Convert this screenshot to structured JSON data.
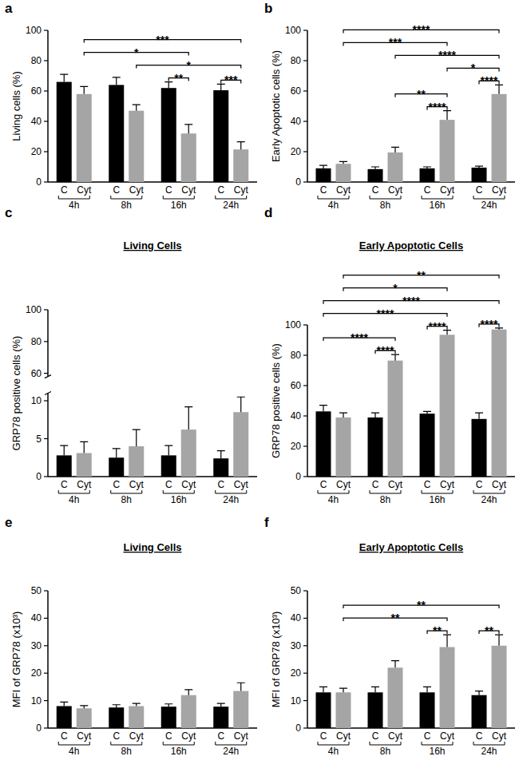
{
  "chart_data": [
    {
      "type": "bar",
      "panel": "a",
      "y_label": "Living cells (%)",
      "categories": [
        "4h",
        "8h",
        "16h",
        "24h"
      ],
      "series": [
        {
          "name": "C",
          "color": "#000000",
          "values": [
            66,
            64,
            62,
            60.5
          ],
          "errors": [
            5,
            5,
            4,
            4
          ]
        },
        {
          "name": "Cyt",
          "color": "#a5a5a5",
          "values": [
            58,
            47,
            32,
            21.5
          ],
          "errors": [
            5,
            4,
            6,
            5
          ]
        }
      ],
      "ylim": [
        0,
        100
      ],
      "yticks": [
        0,
        20,
        40,
        60,
        80,
        100
      ],
      "significance": [
        {
          "bars": [
            1,
            7
          ],
          "label": "***"
        },
        {
          "bars": [
            1,
            5
          ],
          "label": "*"
        },
        {
          "bars": [
            3,
            7
          ],
          "label": "*"
        },
        {
          "bars": [
            4,
            5
          ],
          "label": "**"
        },
        {
          "bars": [
            6,
            7
          ],
          "label": "***"
        }
      ]
    },
    {
      "type": "bar",
      "panel": "b",
      "y_label": "Early Apoptotic cells (%)",
      "categories": [
        "4h",
        "8h",
        "16h",
        "24h"
      ],
      "series": [
        {
          "name": "C",
          "color": "#000000",
          "values": [
            9,
            8.5,
            9,
            9.5
          ],
          "errors": [
            2,
            1.5,
            1,
            1
          ]
        },
        {
          "name": "Cyt",
          "color": "#a5a5a5",
          "values": [
            12,
            19.5,
            41,
            58
          ],
          "errors": [
            1.5,
            3.5,
            6,
            6
          ]
        }
      ],
      "ylim": [
        0,
        100
      ],
      "yticks": [
        0,
        20,
        40,
        60,
        80,
        100
      ],
      "significance": [
        {
          "bars": [
            1,
            7
          ],
          "label": "****"
        },
        {
          "bars": [
            1,
            5
          ],
          "label": "***"
        },
        {
          "bars": [
            3,
            7
          ],
          "label": "****"
        },
        {
          "bars": [
            3,
            5
          ],
          "label": "**"
        },
        {
          "bars": [
            5,
            7
          ],
          "label": "*"
        },
        {
          "bars": [
            4,
            5
          ],
          "label": "****"
        },
        {
          "bars": [
            6,
            7
          ],
          "label": "****"
        }
      ]
    },
    {
      "type": "bar",
      "panel": "c",
      "title": "Living Cells",
      "y_label": "GRP78 positive cells (%)",
      "categories": [
        "4h",
        "8h",
        "16h",
        "24h"
      ],
      "series": [
        {
          "name": "C",
          "color": "#000000",
          "values": [
            2.8,
            2.5,
            2.8,
            2.4
          ],
          "errors": [
            1.3,
            1.2,
            1.3,
            1
          ]
        },
        {
          "name": "Cyt",
          "color": "#a5a5a5",
          "values": [
            3.1,
            4,
            6.2,
            8.5
          ],
          "errors": [
            1.5,
            2.2,
            3,
            2
          ]
        }
      ],
      "ylim": [
        0,
        100
      ],
      "yticks": [
        0,
        5,
        10,
        60,
        80,
        100
      ],
      "axis_break": [
        11,
        58
      ],
      "significance": []
    },
    {
      "type": "bar",
      "panel": "d",
      "title": "Early Apoptotic Cells",
      "y_label": "GRP78 positive cells (%)",
      "categories": [
        "4h",
        "8h",
        "16h",
        "24h"
      ],
      "series": [
        {
          "name": "C",
          "color": "#000000",
          "values": [
            43,
            39,
            41.5,
            38
          ],
          "errors": [
            4,
            3,
            1.5,
            4
          ]
        },
        {
          "name": "Cyt",
          "color": "#a5a5a5",
          "values": [
            39,
            76.5,
            93.5,
            97
          ],
          "errors": [
            3,
            4,
            3,
            1
          ]
        }
      ],
      "ylim": [
        0,
        100
      ],
      "yticks": [
        0,
        20,
        40,
        60,
        80,
        100
      ],
      "significance": [
        {
          "bars": [
            1,
            7
          ],
          "label": "**"
        },
        {
          "bars": [
            1,
            5
          ],
          "label": "*"
        },
        {
          "bars": [
            0,
            7
          ],
          "label": "****"
        },
        {
          "bars": [
            0,
            5
          ],
          "label": "****"
        },
        {
          "bars": [
            0,
            3
          ],
          "label": "****"
        },
        {
          "bars": [
            2,
            3
          ],
          "label": "****"
        },
        {
          "bars": [
            4,
            5
          ],
          "label": "****"
        },
        {
          "bars": [
            6,
            7
          ],
          "label": "****"
        }
      ]
    },
    {
      "type": "bar",
      "panel": "e",
      "title": "Living Cells",
      "y_label": "MFI of GRP78 (x10³)",
      "categories": [
        "4h",
        "8h",
        "16h",
        "24h"
      ],
      "series": [
        {
          "name": "C",
          "color": "#000000",
          "values": [
            8,
            7.5,
            7.8,
            7.8
          ],
          "errors": [
            1.5,
            1,
            1,
            1.2
          ]
        },
        {
          "name": "Cyt",
          "color": "#a5a5a5",
          "values": [
            7.2,
            8,
            12,
            13.5
          ],
          "errors": [
            1,
            1,
            2,
            3
          ]
        }
      ],
      "ylim": [
        0,
        50
      ],
      "yticks": [
        0,
        10,
        20,
        30,
        40,
        50
      ],
      "significance": []
    },
    {
      "type": "bar",
      "panel": "f",
      "title": "Early Apoptotic Cells",
      "y_label": "MFI of GRP78 (x10³)",
      "categories": [
        "4h",
        "8h",
        "16h",
        "24h"
      ],
      "series": [
        {
          "name": "C",
          "color": "#000000",
          "values": [
            13,
            13,
            13,
            12
          ],
          "errors": [
            2,
            2,
            2,
            1.5
          ]
        },
        {
          "name": "Cyt",
          "color": "#a5a5a5",
          "values": [
            13,
            22,
            29.5,
            30
          ],
          "errors": [
            1.5,
            2.5,
            4.5,
            4
          ]
        }
      ],
      "ylim": [
        0,
        50
      ],
      "yticks": [
        0,
        10,
        20,
        30,
        40,
        50
      ],
      "significance": [
        {
          "bars": [
            1,
            7
          ],
          "label": "**"
        },
        {
          "bars": [
            1,
            5
          ],
          "label": "**"
        },
        {
          "bars": [
            4,
            5
          ],
          "label": "**"
        },
        {
          "bars": [
            6,
            7
          ],
          "label": "**"
        }
      ]
    }
  ]
}
